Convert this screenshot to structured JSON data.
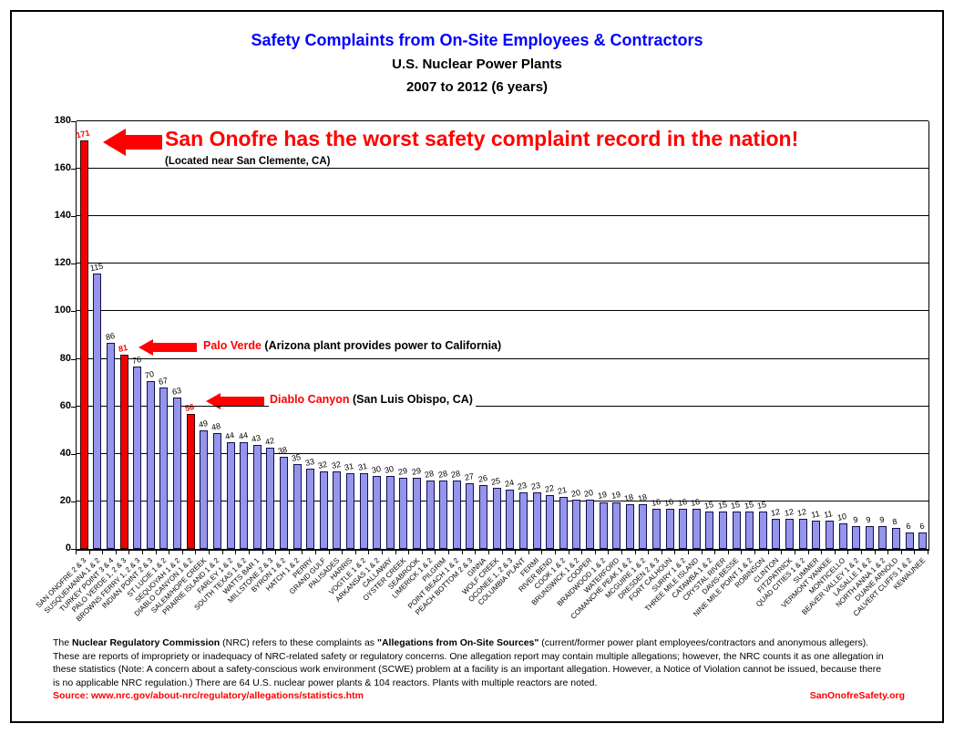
{
  "title": {
    "line1": "Safety Complaints from On-Site Employees & Contractors",
    "line2": "U.S. Nuclear Power Plants",
    "line3": "2007 to 2012 (6 years)"
  },
  "chart_data": {
    "type": "bar",
    "title": "Safety Complaints from On-Site Employees & Contractors",
    "xlabel": "",
    "ylabel": "",
    "ylim": [
      0,
      180
    ],
    "yticks": [
      0,
      20,
      40,
      60,
      80,
      100,
      120,
      140,
      160,
      180
    ],
    "grid": true,
    "legend": "none",
    "categories": [
      "SAN ONOFRE 2 & 3",
      "SUSQUEHANNA 1 & 2",
      "TURKEY POINT 3 & 4",
      "PALO VERDE 1, 2 & 3",
      "BROWNS FERRY 1, 2 & 3",
      "INDIAN POINT 2 & 3",
      "ST LUCIE 1 & 2",
      "SEQUOYAH 1 & 2",
      "DIABLO CANYON 1 & 2",
      "SALEM/HOPE CREEK",
      "PRAIRIE ISLAND 1 & 2",
      "FARLEY 1 & 2",
      "SOUTH TEXAS 1 & 2",
      "WATTS BAR 1",
      "MILLSTONE 2 & 3",
      "BYRON 1 & 2",
      "HATCH 1 & 2",
      "PERRY",
      "GRAND GULF",
      "PALISADES",
      "HARRIS",
      "VOGTLE 1 & 2",
      "ARKANSAS 1 & 2",
      "CALLAWAY",
      "OYSTER CREEK",
      "SEABROOK",
      "LIMERICK 1 & 2",
      "PILGRIM",
      "POINT BEACH 1 & 2",
      "PEACH BOTTOM 2 & 3",
      "GINNA",
      "WOLF CREEK",
      "OCONEE 1, 2 & 3",
      "COLUMBIA PLANT",
      "FERMI",
      "RIVER BEND",
      "COOK 1 & 2",
      "BRUNSWICK 1 & 2",
      "COOPER",
      "BRAIDWOOD 1 & 2",
      "WATERFORD",
      "COMANCHE PEAK 1 & 2",
      "MCGUIRE 1 & 2",
      "DRESDEN 2 & 3",
      "FORT CALHOUN",
      "SURRY 1 & 2",
      "THREE MILE ISLAND",
      "CATAWBA 1 & 2",
      "CRYSTAL RIVER",
      "DAVIS-BESSE",
      "NINE MILE POINT 1 & 2",
      "ROBINSON",
      "CLINTON",
      "FITZPATRICK",
      "QUAD CITIES 1 & 2",
      "SUMMER",
      "VERMONT YANKEE",
      "MONTICELLO",
      "BEAVER VALLEY 1 & 2",
      "LASALLE 1 & 2",
      "NORTH ANNA 1 & 2",
      "DUANE ARNOLD",
      "CALVERT CLIFFS 1 & 2",
      "KEWAUNEE"
    ],
    "values": [
      171,
      115,
      86,
      81,
      76,
      70,
      67,
      63,
      56,
      49,
      48,
      44,
      44,
      43,
      42,
      38,
      35,
      33,
      32,
      32,
      31,
      31,
      30,
      30,
      29,
      29,
      28,
      28,
      28,
      27,
      26,
      25,
      24,
      23,
      23,
      22,
      21,
      20,
      20,
      19,
      19,
      18,
      18,
      16,
      16,
      16,
      16,
      15,
      15,
      15,
      15,
      15,
      12,
      12,
      12,
      11,
      11,
      10,
      9,
      9,
      9,
      8,
      6,
      6
    ],
    "highlighted_red_indices": [
      0,
      3,
      8
    ],
    "bar_color": "#9595EC",
    "bar_highlight_color": "#EE0000"
  },
  "annotations": {
    "san_onofre": {
      "headline": "San Onofre has the worst safety complaint record in the nation!",
      "subtext": "(Located near San Clemente, CA)"
    },
    "palo_verde": {
      "name": "Palo Verde",
      "rest": " (Arizona plant provides power to California)"
    },
    "diablo_canyon": {
      "name": "Diablo Canyon",
      "rest": " (San Luis Obispo, CA)"
    }
  },
  "footer": {
    "lines": [
      [
        {
          "t": "The ",
          "b": false
        },
        {
          "t": "Nuclear Regulatory Commission",
          "b": true
        },
        {
          "t": " (NRC) refers to these complaints as ",
          "b": false
        },
        {
          "t": "\"Allegations from On-Site Sources\"",
          "b": true
        },
        {
          "t": " (current/former power plant employees/contractors and anonymous allegers).",
          "b": false
        }
      ],
      [
        {
          "t": "These are reports of impropriety or inadequacy of NRC-related safety or regulatory concerns.  One allegation report may contain multiple allegations; however, the NRC counts it as one allegation in",
          "b": false
        }
      ],
      [
        {
          "t": "these statistics (Note: A concern about a safety-conscious work environment (SCWE) problem at a facility is an important allegation. However, a Notice of Violation cannot be issued, because there",
          "b": false
        }
      ],
      [
        {
          "t": "is no applicable NRC regulation.)  There are 64 U.S. nuclear power plants & 104 reactors. Plants with multiple reactors are noted.",
          "b": false
        }
      ]
    ],
    "source_label": "Source: www.nrc.gov/about-nrc/regulatory/allegations/statistics.htm",
    "site": "SanOnofreSafety.org"
  },
  "colors": {
    "title_blue": "#0000FF",
    "accent_red": "#FF0000",
    "bar_blue": "#9595EC",
    "bar_red": "#EE0000"
  }
}
